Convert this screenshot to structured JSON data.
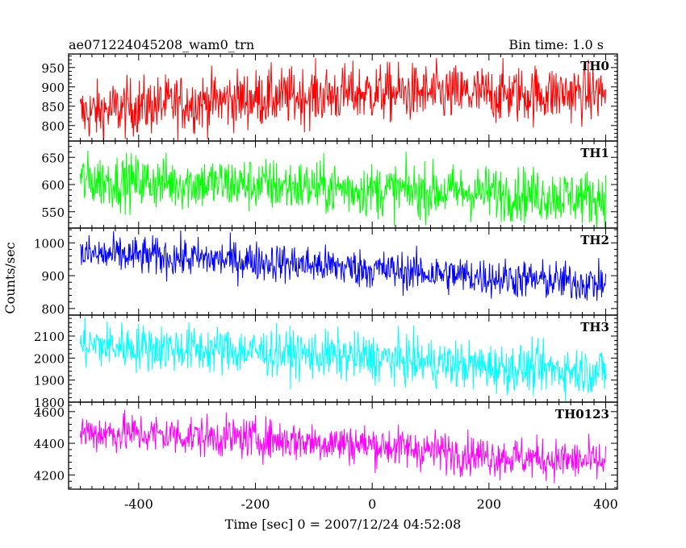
{
  "header": {
    "title": "ae071224045208_wam0_trn",
    "bin_time": "Bin time: 1.0 s"
  },
  "axes": {
    "xlabel": "Time [sec] 0 = 2007/12/24 04:52:08",
    "ylabel": "Counts/sec"
  },
  "chart_data": {
    "type": "line",
    "title": "ae071224045208_wam0_trn",
    "subtitle": "Bin time: 1.0 s",
    "xlabel": "Time [sec] 0 = 2007/12/24 04:52:08",
    "ylabel": "Counts/sec",
    "xlim": [
      -520,
      420
    ],
    "x_ticks": [
      -400,
      -200,
      0,
      200,
      400
    ],
    "x_start": -500,
    "x_end": 400,
    "x_step": 1,
    "grid": false,
    "legend": "none",
    "series": [
      {
        "name": "TH0",
        "color": "#ff0000",
        "ylim": [
          760,
          985
        ],
        "y_ticks": [
          800,
          850,
          900,
          950
        ],
        "trend_x": [
          -500,
          -400,
          -200,
          0,
          200,
          400
        ],
        "trend_y": [
          830,
          850,
          870,
          885,
          880,
          885
        ],
        "noise": 38
      },
      {
        "name": "TH1",
        "color": "#00ff00",
        "ylim": [
          520,
          680
        ],
        "y_ticks": [
          550,
          600,
          650
        ],
        "trend_x": [
          -500,
          -400,
          -200,
          0,
          200,
          400
        ],
        "trend_y": [
          608,
          605,
          600,
          590,
          585,
          575
        ],
        "noise": 25
      },
      {
        "name": "TH2",
        "color": "#0000ff",
        "ylim": [
          780,
          1045
        ],
        "y_ticks": [
          800,
          900,
          1000
        ],
        "trend_x": [
          -500,
          -400,
          -200,
          0,
          200,
          400
        ],
        "trend_y": [
          965,
          960,
          945,
          920,
          895,
          875
        ],
        "noise": 30
      },
      {
        "name": "TH3",
        "color": "#00ffff",
        "ylim": [
          1800,
          2195
        ],
        "y_ticks": [
          1800,
          1900,
          2000,
          2100
        ],
        "trend_x": [
          -500,
          -400,
          -200,
          0,
          200,
          400
        ],
        "trend_y": [
          2060,
          2050,
          2030,
          2000,
          1960,
          1940
        ],
        "noise": 55
      },
      {
        "name": "TH0123",
        "color": "#ff00ff",
        "ylim": [
          4110,
          4660
        ],
        "y_ticks": [
          4200,
          4400,
          4600
        ],
        "trend_x": [
          -500,
          -400,
          -200,
          0,
          200,
          400
        ],
        "trend_y": [
          4470,
          4460,
          4430,
          4390,
          4320,
          4280
        ],
        "noise": 65
      }
    ]
  }
}
